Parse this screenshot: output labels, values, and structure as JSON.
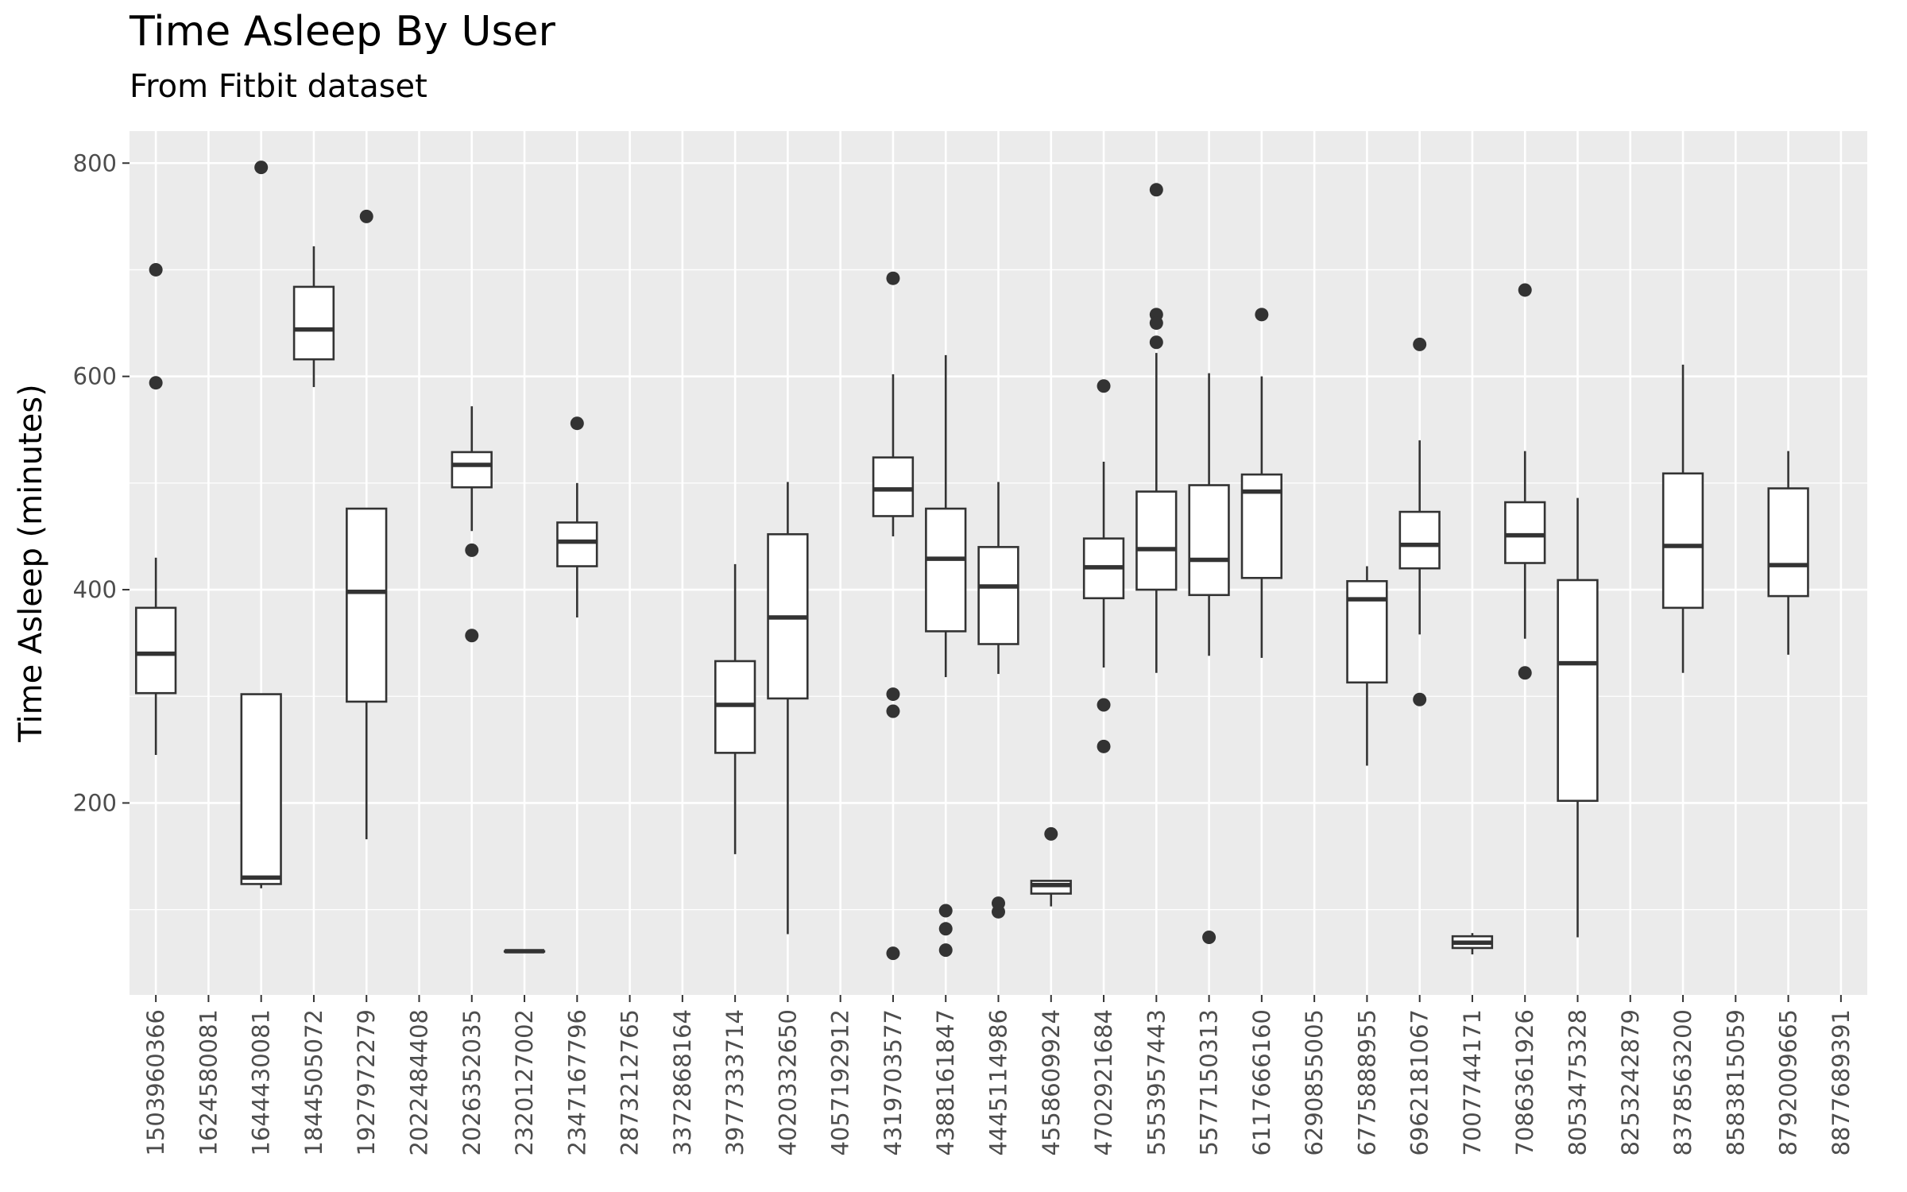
{
  "chart_data": {
    "type": "box",
    "title": "Time Asleep By User",
    "subtitle": "From Fitbit dataset",
    "xlabel": "",
    "ylabel": "Time Asleep (minutes)",
    "ylim": [
      20,
      830
    ],
    "y_ticks": [
      200,
      400,
      600,
      800
    ],
    "grid": true,
    "categories": [
      "1503960366",
      "1624580081",
      "1644430081",
      "1844505072",
      "1927972279",
      "2022484408",
      "2026352035",
      "2320127002",
      "2347167796",
      "2873212765",
      "3372868164",
      "3977333714",
      "4020332650",
      "4057192912",
      "4319703577",
      "4388161847",
      "4445114986",
      "4558609924",
      "4702921684",
      "5553957443",
      "5577150313",
      "6117666160",
      "6290855005",
      "6775888955",
      "6962181067",
      "7007744171",
      "7086361926",
      "8053475328",
      "8253242879",
      "8378563200",
      "8583815059",
      "8792009665",
      "8877689391"
    ],
    "boxes": [
      {
        "id": "1503960366",
        "whisker_low": 245,
        "q1": 303,
        "median": 340,
        "q3": 383,
        "whisker_high": 430,
        "outliers": [
          700,
          594
        ]
      },
      {
        "id": "1624580081"
      },
      {
        "id": "1644430081",
        "whisker_low": 120,
        "q1": 124,
        "median": 130,
        "q3": 302,
        "whisker_high": 302,
        "outliers": [
          796
        ]
      },
      {
        "id": "1844505072",
        "whisker_low": 590,
        "q1": 616,
        "median": 644,
        "q3": 684,
        "whisker_high": 722,
        "outliers": []
      },
      {
        "id": "1927972279",
        "whisker_low": 166,
        "q1": 295,
        "median": 398,
        "q3": 476,
        "whisker_high": 476,
        "outliers": [
          750
        ]
      },
      {
        "id": "2022484408"
      },
      {
        "id": "2026352035",
        "whisker_low": 455,
        "q1": 496,
        "median": 517,
        "q3": 529,
        "whisker_high": 572,
        "outliers": [
          437,
          357
        ]
      },
      {
        "id": "2320127002",
        "whisker_low": 61,
        "q1": 61,
        "median": 61,
        "q3": 61,
        "whisker_high": 61,
        "outliers": []
      },
      {
        "id": "2347167796",
        "whisker_low": 374,
        "q1": 422,
        "median": 445,
        "q3": 463,
        "whisker_high": 500,
        "outliers": [
          556
        ]
      },
      {
        "id": "2873212765"
      },
      {
        "id": "3372868164"
      },
      {
        "id": "3977333714",
        "whisker_low": 152,
        "q1": 247,
        "median": 292,
        "q3": 333,
        "whisker_high": 424,
        "outliers": []
      },
      {
        "id": "4020332650",
        "whisker_low": 77,
        "q1": 298,
        "median": 374,
        "q3": 452,
        "whisker_high": 501,
        "outliers": []
      },
      {
        "id": "4057192912"
      },
      {
        "id": "4319703577",
        "whisker_low": 450,
        "q1": 469,
        "median": 494,
        "q3": 524,
        "whisker_high": 602,
        "outliers": [
          692,
          302,
          286,
          59
        ]
      },
      {
        "id": "4388161847",
        "whisker_low": 318,
        "q1": 361,
        "median": 429,
        "q3": 476,
        "whisker_high": 620,
        "outliers": [
          99,
          82,
          62
        ]
      },
      {
        "id": "4445114986",
        "whisker_low": 321,
        "q1": 349,
        "median": 403,
        "q3": 440,
        "whisker_high": 501,
        "outliers": [
          106,
          98
        ]
      },
      {
        "id": "4558609924",
        "whisker_low": 103,
        "q1": 115,
        "median": 123,
        "q3": 127,
        "whisker_high": 127,
        "outliers": [
          171
        ]
      },
      {
        "id": "4702921684",
        "whisker_low": 327,
        "q1": 392,
        "median": 421,
        "q3": 448,
        "whisker_high": 520,
        "outliers": [
          591,
          292,
          253
        ]
      },
      {
        "id": "5553957443",
        "whisker_low": 322,
        "q1": 400,
        "median": 438,
        "q3": 492,
        "whisker_high": 622,
        "outliers": [
          775,
          658,
          650,
          632
        ]
      },
      {
        "id": "5577150313",
        "whisker_low": 338,
        "q1": 395,
        "median": 428,
        "q3": 498,
        "whisker_high": 603,
        "outliers": [
          74
        ]
      },
      {
        "id": "6117666160",
        "whisker_low": 336,
        "q1": 411,
        "median": 492,
        "q3": 508,
        "whisker_high": 600,
        "outliers": [
          658
        ]
      },
      {
        "id": "6290855005"
      },
      {
        "id": "6775888955",
        "whisker_low": 235,
        "q1": 313,
        "median": 391,
        "q3": 408,
        "whisker_high": 422,
        "outliers": []
      },
      {
        "id": "6962181067",
        "whisker_low": 358,
        "q1": 420,
        "median": 442,
        "q3": 473,
        "whisker_high": 540,
        "outliers": [
          630,
          297
        ]
      },
      {
        "id": "7007744171",
        "whisker_low": 58,
        "q1": 64,
        "median": 69,
        "q3": 75,
        "whisker_high": 78,
        "outliers": []
      },
      {
        "id": "7086361926",
        "whisker_low": 354,
        "q1": 425,
        "median": 451,
        "q3": 482,
        "whisker_high": 530,
        "outliers": [
          681,
          322
        ]
      },
      {
        "id": "8053475328",
        "whisker_low": 74,
        "q1": 202,
        "median": 331,
        "q3": 409,
        "whisker_high": 486,
        "outliers": []
      },
      {
        "id": "8253242879"
      },
      {
        "id": "8378563200",
        "whisker_low": 322,
        "q1": 383,
        "median": 441,
        "q3": 509,
        "whisker_high": 611,
        "outliers": []
      },
      {
        "id": "8583815059"
      },
      {
        "id": "8792009665",
        "whisker_low": 339,
        "q1": 394,
        "median": 423,
        "q3": 495,
        "whisker_high": 530,
        "outliers": []
      },
      {
        "id": "8877689391"
      }
    ],
    "colors": {
      "panel_background": "#EBEBEB",
      "grid_major": "#FFFFFF",
      "box_fill": "#FFFFFF",
      "box_line": "#333333",
      "tick_label": "#4D4D4D"
    }
  }
}
